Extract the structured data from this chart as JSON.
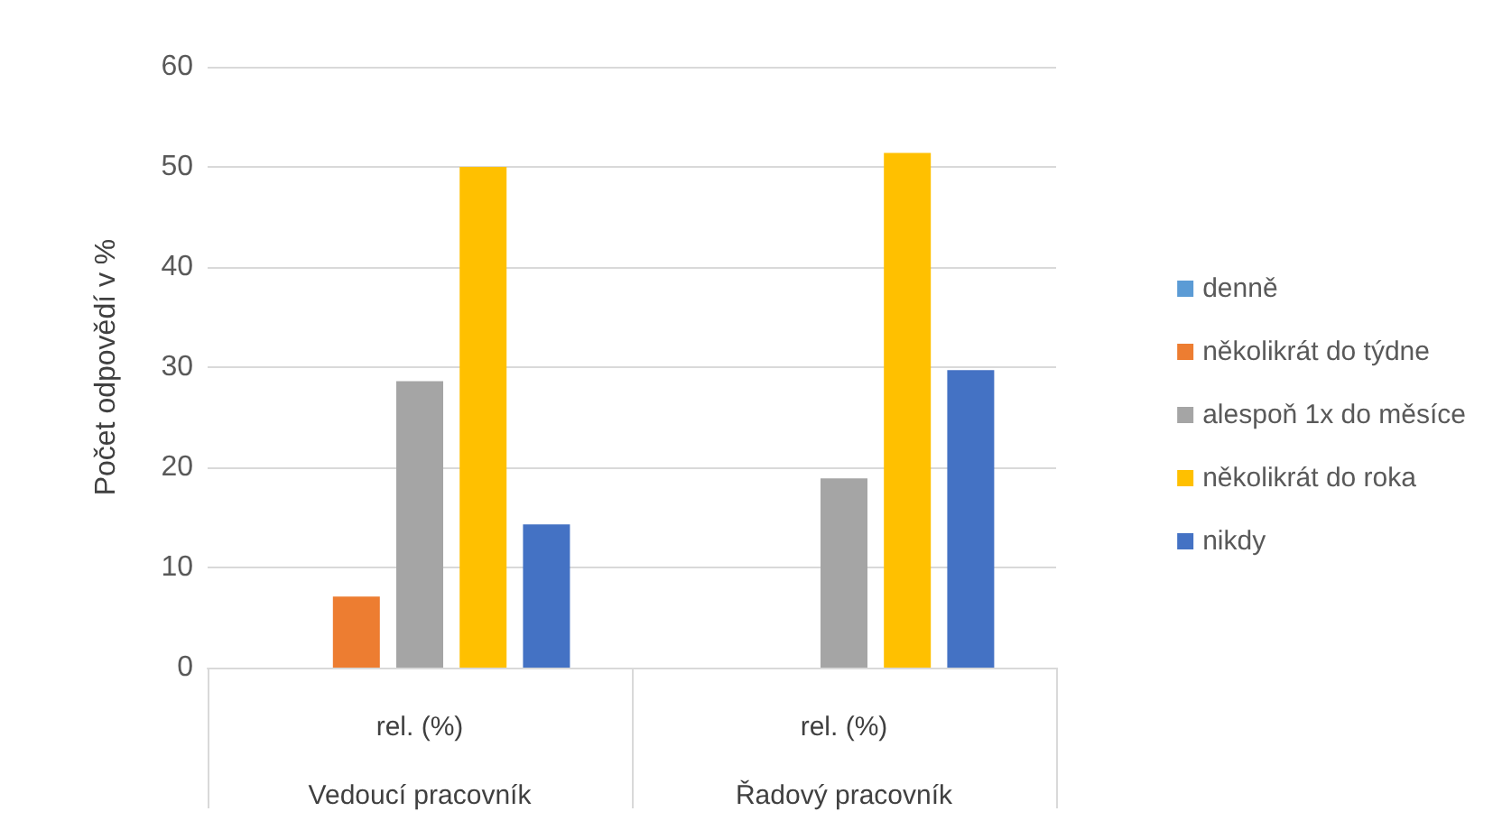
{
  "chart_data": {
    "type": "bar",
    "ylabel": "Počet odpovědí v %",
    "categories": [
      "rel. (%)\nVedoucí pracovník",
      "rel. (%)\nŘadový pracovník"
    ],
    "series": [
      {
        "name": "denně",
        "color": "#5b9bd5",
        "values": [
          0,
          0
        ]
      },
      {
        "name": "několikrát do týdne",
        "color": "#ed7d31",
        "values": [
          7.1,
          0
        ]
      },
      {
        "name": "alespoň 1x do měsíce",
        "color": "#a5a5a5",
        "values": [
          28.6,
          18.9
        ]
      },
      {
        "name": "několikrát do roka",
        "color": "#ffc000",
        "values": [
          50,
          51.4
        ]
      },
      {
        "name": "nikdy",
        "color": "#4472c4",
        "values": [
          14.3,
          29.7
        ]
      }
    ],
    "ylim": [
      0,
      60
    ],
    "yticks": [
      0,
      10,
      20,
      30,
      40,
      50,
      60
    ],
    "grid": "y",
    "legend": "right"
  }
}
